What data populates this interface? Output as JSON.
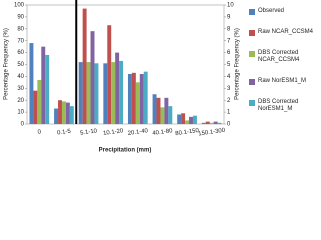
{
  "chart_data": [
    {
      "type": "bar",
      "categories": [
        "0",
        "0.1-5"
      ],
      "series": [
        {
          "color": "#4f81bd",
          "values": [
            68,
            13
          ]
        },
        {
          "color": "#c0504d",
          "values": [
            28,
            20
          ]
        },
        {
          "color": "#9bbb59",
          "values": [
            37,
            19
          ]
        },
        {
          "color": "#8064a2",
          "values": [
            65,
            18
          ]
        },
        {
          "color": "#4bacc6",
          "values": [
            58,
            15
          ]
        }
      ],
      "ylabel": "Percentage Frequency (%)",
      "ylim": [
        0,
        100
      ],
      "yticks": [
        0,
        10,
        20,
        30,
        40,
        50,
        60,
        70,
        80,
        90,
        100
      ]
    },
    {
      "type": "bar",
      "categories": [
        "5.1-10",
        "10.1-20",
        "20.1-40",
        "40.1-80",
        "80.1-150",
        "150.1-300"
      ],
      "series": [
        {
          "name": "Observed",
          "color": "#4f81bd",
          "values": [
            5.2,
            5.1,
            4.2,
            2.5,
            0.8,
            0.1
          ],
          "axis": "y2"
        },
        {
          "name": "Raw NCAR_CCSM4",
          "color": "#c0504d",
          "values": [
            9.7,
            8.3,
            4.3,
            2.2,
            0.9,
            0.2
          ],
          "axis": "y2"
        },
        {
          "name": "DBS Corrected NCAR_CCSM4",
          "color": "#9bbb59",
          "values": [
            5.2,
            5.2,
            3.5,
            1.4,
            0.3,
            0.1
          ],
          "axis": "y2"
        },
        {
          "name": "Raw NorESM1_M",
          "color": "#8064a2",
          "values": [
            7.8,
            6.0,
            4.2,
            2.2,
            0.6,
            0.2
          ],
          "axis": "y2"
        },
        {
          "name": "DBS Corrected NorESM1_M",
          "color": "#4bacc6",
          "values": [
            5.1,
            5.3,
            4.4,
            1.5,
            0.7,
            0.1
          ],
          "axis": "y2"
        }
      ],
      "y2label": "Percentage Frequency (%)",
      "xlabel": "Precipitation (mm)",
      "y2lim": [
        0,
        10
      ],
      "y2ticks": [
        0,
        1,
        2,
        3,
        4,
        5,
        6,
        7,
        8,
        9,
        10
      ]
    }
  ]
}
